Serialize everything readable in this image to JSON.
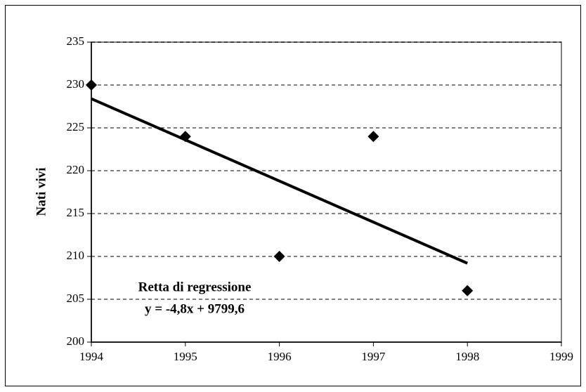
{
  "chart_data": {
    "type": "scatter",
    "y_label": "Nati vivi",
    "annotations": [
      "Retta di regressione",
      "y = -4,8x + 9799,6"
    ],
    "x": [
      1994,
      1995,
      1996,
      1997,
      1998
    ],
    "values": [
      230,
      224,
      210,
      224,
      206
    ],
    "color": "#000000",
    "trendline": {
      "x": [
        1994,
        1998
      ],
      "values": [
        228.4,
        209.2
      ],
      "color": "#000000"
    },
    "xlim": [
      1994,
      1999
    ],
    "xticks": [
      1994,
      1995,
      1996,
      1997,
      1998,
      1999
    ],
    "ylim": [
      200,
      235
    ],
    "yticks": [
      200,
      205,
      210,
      215,
      220,
      225,
      230,
      235
    ],
    "grid": true
  }
}
